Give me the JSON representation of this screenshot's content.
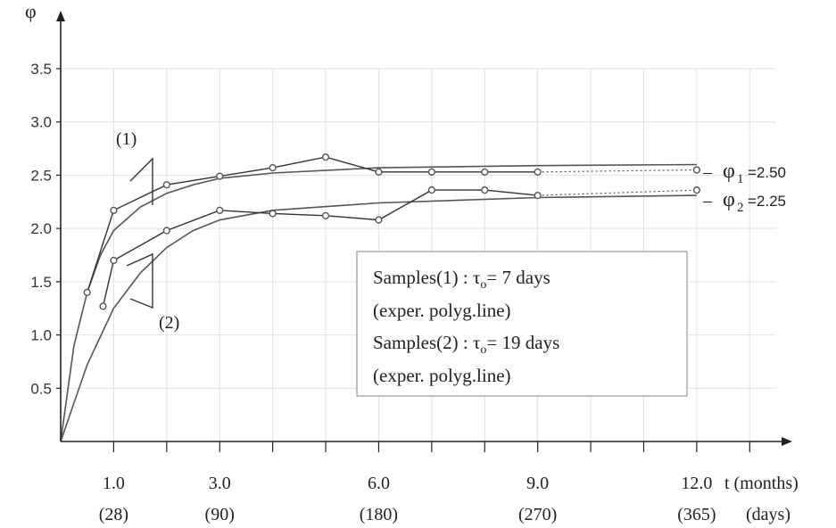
{
  "chart_data": {
    "type": "line",
    "ylabel": "φ",
    "xlabel_months": "t (months)",
    "xlabel_days": "(days)",
    "ylim": [
      0,
      3.5
    ],
    "xlim": [
      0,
      13.5
    ],
    "y_ticks": [
      "0.5",
      "1.0",
      "1.5",
      "2.0",
      "2.5",
      "3.0",
      "3.5"
    ],
    "x_ticks": [
      {
        "months": "1.0",
        "days": "(28)",
        "value": 1.0
      },
      {
        "months": "3.0",
        "days": "(90)",
        "value": 3.0
      },
      {
        "months": "6.0",
        "days": "(180)",
        "value": 6.0
      },
      {
        "months": "9.0",
        "days": "(270)",
        "value": 9.0
      },
      {
        "months": "12.0",
        "days": "(365)",
        "value": 12.0
      }
    ],
    "grid": true,
    "series": [
      {
        "name": "(1)",
        "curve": [
          [
            0,
            0
          ],
          [
            0.25,
            0.9
          ],
          [
            0.5,
            1.4
          ],
          [
            0.75,
            1.75
          ],
          [
            1.0,
            1.98
          ],
          [
            1.5,
            2.2
          ],
          [
            2.0,
            2.33
          ],
          [
            2.5,
            2.41
          ],
          [
            3.0,
            2.47
          ],
          [
            4.0,
            2.52
          ],
          [
            6.0,
            2.57
          ],
          [
            9.0,
            2.59
          ],
          [
            12.0,
            2.6
          ]
        ],
        "experimental": [
          [
            0.5,
            1.4
          ],
          [
            1.0,
            2.17
          ],
          [
            2.0,
            2.41
          ],
          [
            3.0,
            2.49
          ],
          [
            4.0,
            2.57
          ],
          [
            5.0,
            2.67
          ],
          [
            6.0,
            2.53
          ],
          [
            7.0,
            2.53
          ],
          [
            8.0,
            2.53
          ],
          [
            9.0,
            2.53
          ],
          [
            12.0,
            2.55
          ]
        ],
        "asymptote_label": "φ",
        "asymptote_subscript": "1",
        "asymptote_value": "=2.50"
      },
      {
        "name": "(2)",
        "curve": [
          [
            0,
            0
          ],
          [
            0.5,
            0.72
          ],
          [
            1.0,
            1.25
          ],
          [
            1.5,
            1.58
          ],
          [
            2.0,
            1.82
          ],
          [
            2.5,
            1.98
          ],
          [
            3.0,
            2.08
          ],
          [
            4.0,
            2.17
          ],
          [
            6.0,
            2.24
          ],
          [
            9.0,
            2.29
          ],
          [
            12.0,
            2.31
          ]
        ],
        "experimental": [
          [
            0.8,
            1.27
          ],
          [
            1.0,
            1.7
          ],
          [
            2.0,
            1.98
          ],
          [
            3.0,
            2.17
          ],
          [
            4.0,
            2.14
          ],
          [
            5.0,
            2.12
          ],
          [
            6.0,
            2.08
          ],
          [
            7.0,
            2.36
          ],
          [
            8.0,
            2.36
          ],
          [
            9.0,
            2.31
          ],
          [
            12.0,
            2.36
          ]
        ],
        "asymptote_label": "φ",
        "asymptote_subscript": "2",
        "asymptote_value": "=2.25"
      }
    ],
    "legend": [
      {
        "label": "Samples(1) : τ",
        "sub": "o",
        "rest": "= 7 days",
        "note": "(exper. polyg.line)"
      },
      {
        "label": "Samples(2) : τ",
        "sub": "o",
        "rest": "= 19 days",
        "note": "(exper. polyg.line)"
      }
    ]
  }
}
